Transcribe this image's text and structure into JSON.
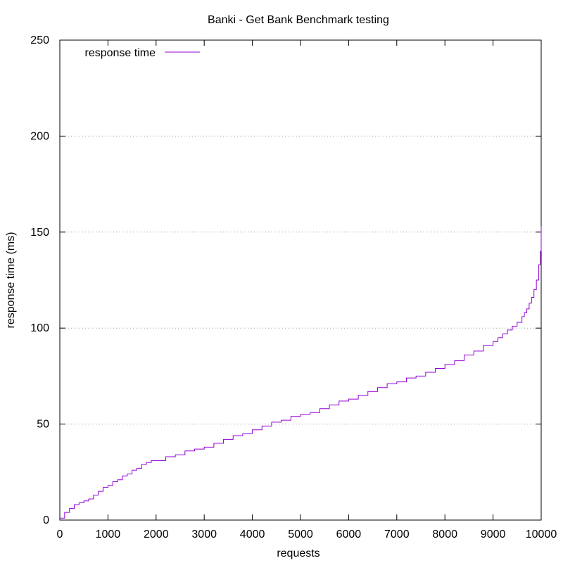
{
  "chart_data": {
    "type": "line",
    "title": "Banki - Get Bank Benchmark testing",
    "xlabel": "requests",
    "ylabel": "response time (ms)",
    "xlim": [
      0,
      10000
    ],
    "ylim": [
      0,
      250
    ],
    "x_ticks": [
      "0",
      "1000",
      "2000",
      "3000",
      "4000",
      "5000",
      "6000",
      "7000",
      "8000",
      "9000",
      "10000"
    ],
    "y_ticks": [
      "0",
      "50",
      "100",
      "150",
      "200",
      "250"
    ],
    "grid": "horizontal dotted",
    "legend_position": "top-left",
    "series": [
      {
        "name": "response time",
        "color": "#9400d3",
        "step": true,
        "x": [
          0,
          100,
          200,
          300,
          400,
          500,
          600,
          700,
          800,
          900,
          1000,
          1100,
          1200,
          1300,
          1400,
          1500,
          1600,
          1700,
          1800,
          1900,
          2000,
          2200,
          2400,
          2600,
          2800,
          3000,
          3200,
          3400,
          3600,
          3800,
          4000,
          4200,
          4400,
          4600,
          4800,
          5000,
          5200,
          5400,
          5600,
          5800,
          6000,
          6200,
          6400,
          6600,
          6800,
          7000,
          7200,
          7400,
          7600,
          7800,
          8000,
          8200,
          8400,
          8600,
          8800,
          9000,
          9100,
          9200,
          9300,
          9400,
          9500,
          9600,
          9650,
          9700,
          9750,
          9800,
          9850,
          9900,
          9950,
          9980,
          10000
        ],
        "y": [
          1,
          4,
          6,
          8,
          9,
          10,
          11,
          13,
          15,
          17,
          18,
          20,
          21,
          23,
          24,
          26,
          27,
          29,
          30,
          31,
          31,
          33,
          34,
          36,
          37,
          38,
          40,
          42,
          44,
          45,
          47,
          49,
          51,
          52,
          54,
          55,
          56,
          58,
          60,
          62,
          63,
          65,
          67,
          69,
          71,
          72,
          74,
          75,
          77,
          79,
          81,
          83,
          86,
          88,
          91,
          93,
          95,
          97,
          99,
          101,
          103,
          106,
          108,
          110,
          113,
          116,
          120,
          125,
          133,
          140,
          153
        ]
      }
    ]
  }
}
